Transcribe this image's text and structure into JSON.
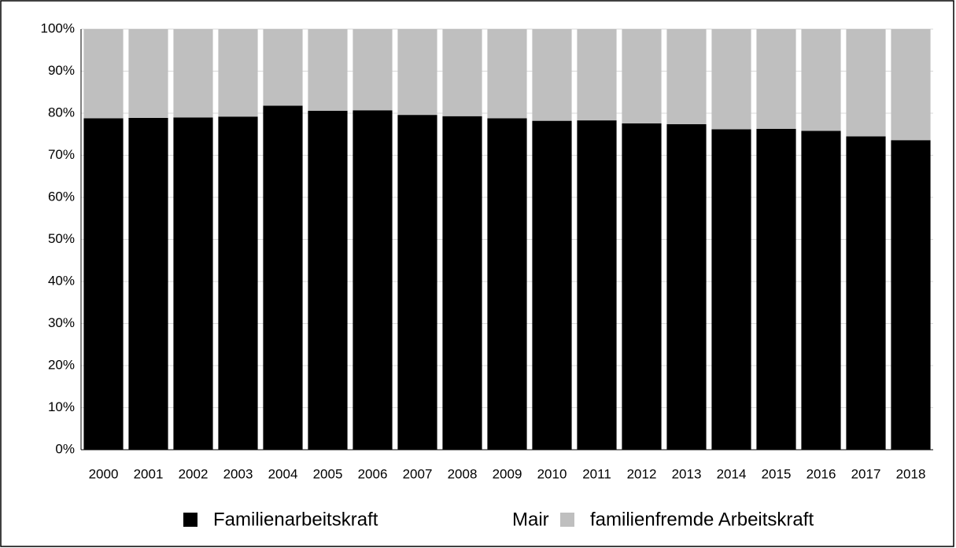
{
  "chart_data": {
    "type": "stacked_bar",
    "categories": [
      "2000",
      "2001",
      "2002",
      "2003",
      "2004",
      "2005",
      "2006",
      "2007",
      "2008",
      "2009",
      "2010",
      "2011",
      "2012",
      "2013",
      "2014",
      "2015",
      "2016",
      "2017",
      "2018"
    ],
    "series": [
      {
        "name": "Familienarbeitskraft",
        "color": "#000000",
        "values": [
          78.8,
          78.9,
          79.0,
          79.2,
          81.8,
          80.6,
          80.7,
          79.6,
          79.3,
          78.8,
          78.2,
          78.3,
          77.6,
          77.4,
          76.2,
          76.3,
          75.8,
          74.5,
          73.6
        ]
      },
      {
        "name": "familienfremde Arbeitskraft",
        "color": "#bfbfbf",
        "values": [
          21.2,
          21.1,
          21.0,
          20.8,
          18.2,
          19.4,
          19.3,
          20.4,
          20.7,
          21.2,
          21.8,
          21.7,
          22.4,
          22.6,
          23.8,
          23.7,
          24.2,
          25.5,
          26.4
        ]
      }
    ],
    "annotation": "Mair",
    "ylim": [
      0,
      100
    ],
    "yticks": [
      {
        "value": 0,
        "label": "0%"
      },
      {
        "value": 10,
        "label": "10%"
      },
      {
        "value": 20,
        "label": "20%"
      },
      {
        "value": 30,
        "label": "30%"
      },
      {
        "value": 40,
        "label": "40%"
      },
      {
        "value": 50,
        "label": "50%"
      },
      {
        "value": 60,
        "label": "60%"
      },
      {
        "value": 70,
        "label": "70%"
      },
      {
        "value": 80,
        "label": "80%"
      },
      {
        "value": 90,
        "label": "90%"
      },
      {
        "value": 100,
        "label": "100%"
      }
    ],
    "grid": true,
    "legend": "bottom"
  }
}
